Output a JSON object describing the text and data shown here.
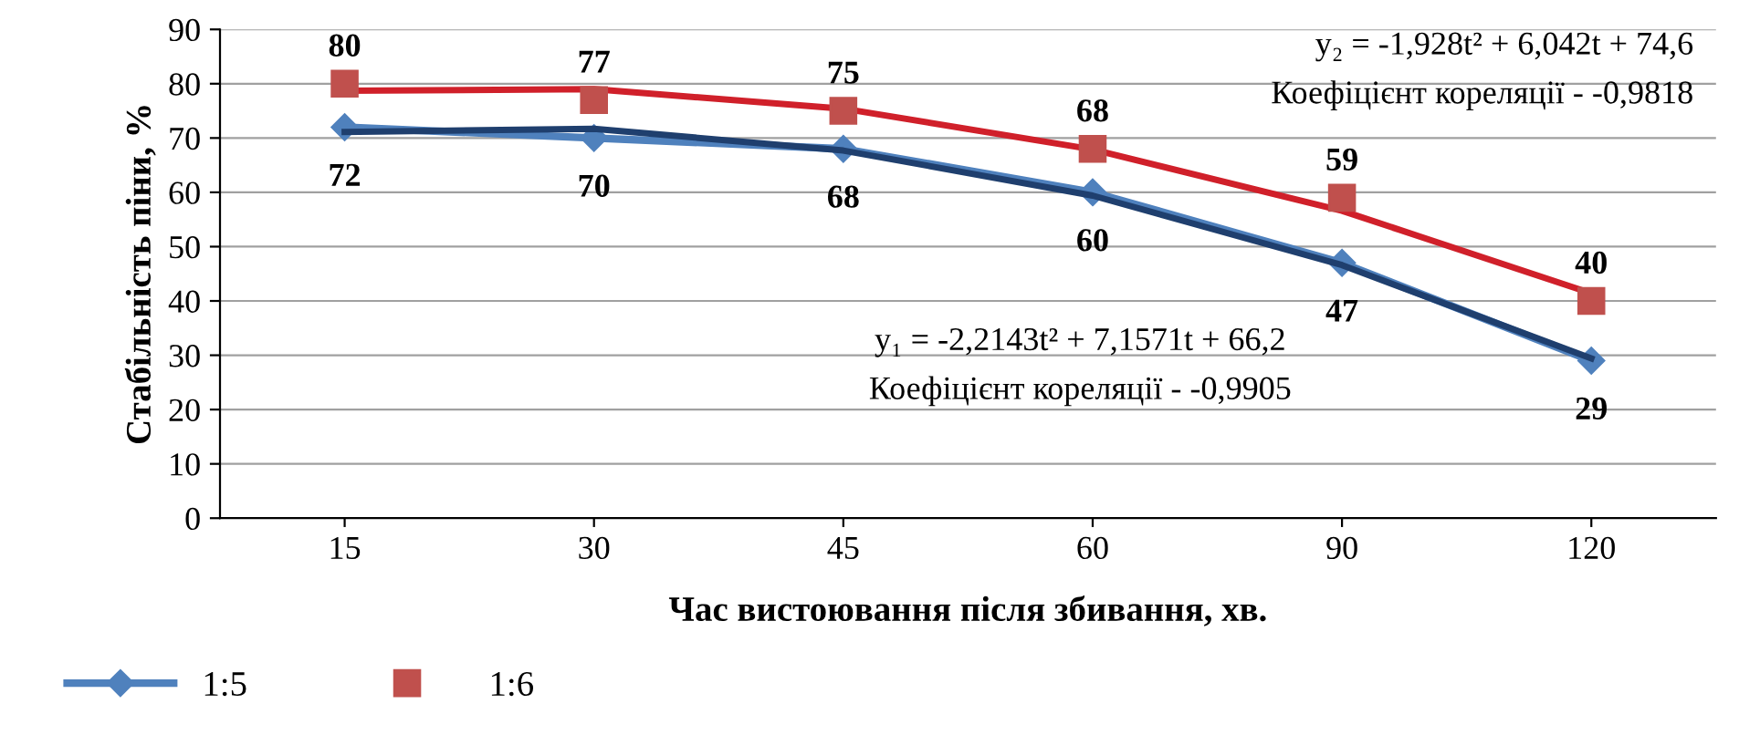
{
  "chart_data": {
    "type": "line",
    "xlabel": "Час вистоювання після збивання, хв.",
    "ylabel": "Стабільність піни, %",
    "categories": [
      "15",
      "30",
      "45",
      "60",
      "90",
      "120"
    ],
    "series": [
      {
        "name": "1:5",
        "color": "#4f81bd",
        "marker": "diamond",
        "values": [
          72,
          70,
          68,
          60,
          47,
          29
        ],
        "value_labels": [
          "72",
          "70",
          "68",
          "60",
          "47",
          "29"
        ]
      },
      {
        "name": "1:6",
        "type": "scatter",
        "color": "#c0504d",
        "marker": "square",
        "values": [
          80,
          77,
          75,
          68,
          59,
          40
        ],
        "value_labels": [
          "80",
          "77",
          "75",
          "68",
          "59",
          "40"
        ]
      },
      {
        "color": "#1f3f6e",
        "marker": "none",
        "values": [
          71.1,
          71.7,
          67.7,
          59.4,
          46.6,
          29.4
        ]
      },
      {
        "color": "#d0202a",
        "marker": "none",
        "values": [
          78.7,
          79.0,
          75.4,
          67.9,
          56.6,
          41.4
        ]
      }
    ],
    "ylim": [
      0,
      90
    ],
    "yticks": [
      0,
      10,
      20,
      30,
      40,
      50,
      60,
      70,
      80,
      90
    ],
    "grid": "y",
    "legend": "bottom left",
    "annotations": [
      "y₂ = -1,928t² + 6,042t + 74,6",
      "Коефіцієнт кореляції - -0,9818",
      "y₁ = -2,2143t² + 7,1571t + 66,2",
      "Коефіцієнт кореляції - -0,9905"
    ]
  }
}
